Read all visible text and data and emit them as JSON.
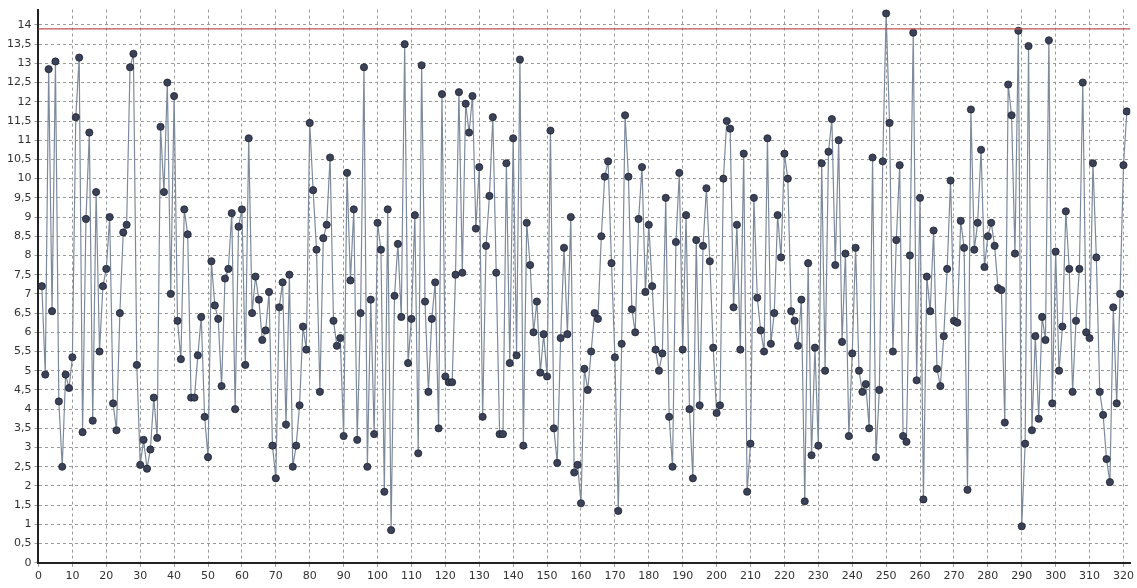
{
  "chart_data": {
    "type": "line",
    "grid": true,
    "legend": false,
    "marker": "circle",
    "line_style": "solid",
    "xlim": [
      0,
      322
    ],
    "xticks": [
      0,
      10,
      20,
      30,
      40,
      50,
      60,
      70,
      80,
      90,
      100,
      110,
      120,
      130,
      140,
      150,
      160,
      170,
      180,
      190,
      200,
      210,
      220,
      230,
      240,
      250,
      260,
      270,
      280,
      290,
      300,
      310,
      320
    ],
    "ylim": [
      0,
      14.4
    ],
    "yticks": [
      0,
      {
        "value": 0.5,
        "label": "0,5"
      },
      1,
      {
        "value": 1.5,
        "label": "1,5"
      },
      2,
      {
        "value": 2.5,
        "label": "2,5"
      },
      3,
      {
        "value": 3.5,
        "label": "3,5"
      },
      4,
      {
        "value": 4.5,
        "label": "4,5"
      },
      5,
      {
        "value": 5.5,
        "label": "5,5"
      },
      6,
      {
        "value": 6.5,
        "label": "6,5"
      },
      7,
      {
        "value": 7.5,
        "label": "7,5"
      },
      8,
      {
        "value": 8.5,
        "label": "8,5"
      },
      9,
      {
        "value": 9.5,
        "label": "9,5"
      },
      10,
      {
        "value": 10.5,
        "label": "10,5"
      },
      11,
      {
        "value": 11.5,
        "label": "11,5"
      },
      12,
      {
        "value": 12.5,
        "label": "12,5"
      },
      13,
      {
        "value": 13.5,
        "label": "13,5"
      },
      14
    ],
    "ref_lines": [
      {
        "axis": "y",
        "value": 13.9,
        "color": "#c0504d"
      }
    ],
    "x": [
      1,
      2,
      3,
      4,
      5,
      6,
      7,
      8,
      9,
      10,
      11,
      12,
      13,
      14,
      15,
      16,
      17,
      18,
      19,
      20,
      21,
      22,
      23,
      24,
      25,
      26,
      27,
      28,
      29,
      30,
      31,
      32,
      33,
      34,
      35,
      36,
      37,
      38,
      39,
      40,
      41,
      42,
      43,
      44,
      45,
      46,
      47,
      48,
      49,
      50,
      51,
      52,
      53,
      54,
      55,
      56,
      57,
      58,
      59,
      60,
      61,
      62,
      63,
      64,
      65,
      66,
      67,
      68,
      69,
      70,
      71,
      72,
      73,
      74,
      75,
      76,
      77,
      78,
      79,
      80,
      81,
      82,
      83,
      84,
      85,
      86,
      87,
      88,
      89,
      90,
      91,
      92,
      93,
      94,
      95,
      96,
      97,
      98,
      99,
      100,
      101,
      102,
      103,
      104,
      105,
      106,
      107,
      108,
      109,
      110,
      111,
      112,
      113,
      114,
      115,
      116,
      117,
      118,
      119,
      120,
      121,
      122,
      123,
      124,
      125,
      126,
      127,
      128,
      129,
      130,
      131,
      132,
      133,
      134,
      135,
      136,
      137,
      138,
      139,
      140,
      141,
      142,
      143,
      144,
      145,
      146,
      147,
      148,
      149,
      150,
      151,
      152,
      153,
      154,
      155,
      156,
      157,
      158,
      159,
      160,
      161,
      162,
      163,
      164,
      165,
      166,
      167,
      168,
      169,
      170,
      171,
      172,
      173,
      174,
      175,
      176,
      177,
      178,
      179,
      180,
      181,
      182,
      183,
      184,
      185,
      186,
      187,
      188,
      189,
      190,
      191,
      192,
      193,
      194,
      195,
      196,
      197,
      198,
      199,
      200,
      201,
      202,
      203,
      204,
      205,
      206,
      207,
      208,
      209,
      210,
      211,
      212,
      213,
      214,
      215,
      216,
      217,
      218,
      219,
      220,
      221,
      222,
      223,
      224,
      225,
      226,
      227,
      228,
      229,
      230,
      231,
      232,
      233,
      234,
      235,
      236,
      237,
      238,
      239,
      240,
      241,
      242,
      243,
      244,
      245,
      246,
      247,
      248,
      249,
      250,
      251,
      252,
      253,
      254,
      255,
      256,
      257,
      258,
      259,
      260,
      261,
      262,
      263,
      264,
      265,
      266,
      267,
      268,
      269,
      270,
      271,
      272,
      273,
      274,
      275,
      276,
      277,
      278,
      279,
      280,
      281,
      282,
      283,
      284,
      285,
      286,
      287,
      288,
      289,
      290,
      291,
      292,
      293,
      294,
      295,
      296,
      297,
      298,
      299,
      300,
      301,
      302,
      303,
      304,
      305,
      306,
      307,
      308,
      309,
      310,
      311,
      312,
      313,
      314,
      315,
      316,
      317,
      318,
      319,
      320,
      321
    ],
    "series": [
      {
        "color": "#3b4257",
        "values": [
          7.2,
          4.9,
          12.85,
          6.55,
          13.05,
          4.2,
          2.5,
          4.9,
          4.55,
          5.35,
          11.6,
          13.15,
          3.4,
          8.95,
          11.2,
          3.7,
          9.65,
          5.5,
          7.2,
          7.65,
          9.0,
          4.15,
          3.45,
          6.5,
          8.6,
          8.8,
          12.9,
          13.25,
          5.15,
          2.55,
          3.2,
          2.45,
          2.95,
          4.3,
          3.25,
          11.35,
          9.65,
          12.5,
          7.0,
          12.15,
          6.3,
          5.3,
          9.2,
          8.55,
          4.3,
          4.3,
          5.4,
          6.4,
          3.8,
          2.75,
          7.85,
          6.7,
          6.35,
          4.6,
          7.4,
          7.65,
          9.1,
          4.0,
          8.75,
          9.2,
          5.15,
          11.05,
          6.5,
          7.45,
          6.85,
          5.8,
          6.05,
          7.05,
          3.05,
          2.2,
          6.65,
          7.3,
          3.6,
          7.5,
          2.5,
          3.05,
          4.1,
          6.15,
          5.55,
          11.45,
          9.7,
          8.15,
          4.45,
          8.45,
          8.8,
          10.55,
          6.3,
          5.65,
          5.85,
          3.3,
          10.15,
          7.35,
          9.2,
          3.2,
          6.5,
          12.9,
          2.5,
          6.85,
          3.35,
          8.85,
          8.15,
          1.85,
          9.2,
          0.85,
          6.95,
          8.3,
          6.4,
          13.5,
          5.2,
          6.35,
          9.05,
          2.85,
          12.95,
          6.8,
          4.45,
          6.35,
          7.3,
          3.5,
          12.2,
          4.85,
          4.7,
          4.7,
          7.5,
          12.25,
          7.55,
          11.95,
          11.2,
          12.15,
          8.7,
          10.3,
          3.8,
          8.25,
          9.55,
          11.6,
          7.55,
          3.35,
          3.35,
          10.4,
          5.2,
          11.05,
          5.4,
          13.1,
          3.05,
          8.85,
          7.75,
          6.0,
          6.8,
          4.95,
          5.95,
          4.85,
          11.25,
          3.5,
          2.6,
          5.85,
          8.2,
          5.95,
          9.0,
          2.35,
          2.55,
          1.55,
          5.05,
          4.5,
          5.5,
          6.5,
          6.35,
          8.5,
          10.05,
          10.45,
          7.8,
          5.35,
          1.35,
          5.7,
          11.65,
          10.05,
          6.6,
          6.0,
          8.95,
          10.3,
          7.05,
          8.8,
          7.2,
          5.55,
          5.0,
          5.45,
          9.5,
          3.8,
          2.5,
          8.35,
          10.15,
          5.55,
          9.05,
          4.0,
          2.2,
          8.4,
          4.1,
          8.25,
          9.75,
          7.85,
          5.6,
          3.9,
          4.1,
          10.0,
          11.5,
          11.3,
          6.65,
          8.8,
          5.55,
          10.65,
          1.85,
          3.1,
          9.5,
          6.9,
          6.05,
          5.5,
          11.05,
          5.7,
          6.5,
          9.05,
          7.95,
          10.65,
          10.0,
          6.55,
          6.3,
          5.65,
          6.85,
          1.6,
          7.8,
          2.8,
          5.6,
          3.05,
          10.4,
          5.0,
          10.7,
          11.55,
          7.75,
          11.0,
          5.75,
          8.05,
          3.3,
          5.45,
          8.2,
          5.0,
          4.45,
          4.65,
          3.5,
          10.55,
          2.75,
          4.5,
          10.45,
          14.3,
          11.45,
          5.5,
          8.4,
          10.35,
          3.3,
          3.15,
          8.0,
          13.8,
          4.75,
          9.5,
          1.65,
          7.45,
          6.55,
          8.65,
          5.05,
          4.6,
          5.9,
          7.65,
          9.95,
          6.3,
          6.25,
          8.9,
          8.2,
          1.9,
          11.8,
          8.15,
          8.85,
          10.75,
          7.7,
          8.5,
          8.85,
          8.25,
          7.15,
          7.1,
          3.65,
          12.45,
          11.65,
          8.05,
          13.85,
          0.95,
          3.1,
          13.45,
          3.45,
          5.9,
          3.75,
          6.4,
          5.8,
          13.6,
          4.15,
          8.1,
          5.0,
          6.15,
          9.15,
          7.65,
          4.45,
          6.3,
          7.65,
          12.5,
          6.0,
          5.85,
          10.4,
          7.95,
          4.45,
          3.85,
          2.7,
          2.1,
          6.65,
          4.15,
          7.0,
          10.35,
          11.75
        ]
      }
    ]
  }
}
